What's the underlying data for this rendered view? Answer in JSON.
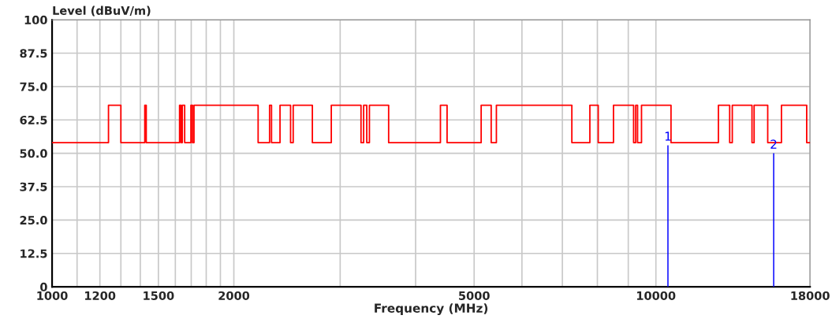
{
  "chart_data": {
    "type": "step",
    "xlabel": "Frequency (MHz)",
    "ylabel": "Level (dBuV/m)",
    "log": "x",
    "grid": true,
    "legend": false,
    "xlim": [
      1000,
      18000
    ],
    "ylim": [
      0,
      100
    ],
    "xticks": [
      1000,
      {
        "value": 1100,
        "label": null
      },
      1200,
      {
        "value": 1300,
        "label": null
      },
      {
        "value": 1400,
        "label": null
      },
      1500,
      {
        "value": 1600,
        "label": null
      },
      {
        "value": 1700,
        "label": null
      },
      {
        "value": 1800,
        "label": null
      },
      {
        "value": 1900,
        "label": null
      },
      2000,
      {
        "value": 3000,
        "label": null
      },
      {
        "value": 4000,
        "label": null
      },
      5000,
      {
        "value": 6000,
        "label": null
      },
      {
        "value": 7000,
        "label": null
      },
      {
        "value": 8000,
        "label": null
      },
      {
        "value": 9000,
        "label": null
      },
      10000,
      18000
    ],
    "yticks": [
      0,
      12.5,
      {
        "value": 25,
        "label": "25.0"
      },
      {
        "value": 37.5,
        "label": "37.5"
      },
      {
        "value": 50,
        "label": "50.0"
      },
      62.5,
      {
        "value": 75,
        "label": "75.0"
      },
      87.5,
      100
    ],
    "series": [
      {
        "color": "#ff0000",
        "x": [
          1000,
          1240,
          1300,
          1424,
          1432,
          1626,
          1635,
          1643,
          1658,
          1698,
          1708,
          1718,
          2194,
          2292,
          2309,
          2385,
          2483,
          2508,
          2698,
          2900,
          3248,
          3281,
          3320,
          3354,
          3609,
          4397,
          4510,
          5136,
          5336,
          5443,
          7258,
          7774,
          8026,
          8506,
          9185,
          9260,
          9325,
          9466,
          10593,
          12692,
          13249,
          13382,
          14426,
          14543,
          15318,
          16140,
          17773,
          18000
        ],
        "values": [
          54,
          68,
          54,
          68,
          54,
          68,
          54,
          68,
          54,
          68,
          54,
          68,
          54,
          68,
          54,
          68,
          54,
          68,
          54,
          68,
          54,
          68,
          54,
          68,
          54,
          68,
          54,
          68,
          54,
          68,
          54,
          68,
          54,
          68,
          54,
          68,
          54,
          68,
          54,
          68,
          54,
          68,
          54,
          68,
          54,
          68,
          54,
          54
        ]
      },
      {
        "type": "bar",
        "color": "#0000ff",
        "x": [
          10470,
          15670
        ],
        "values": [
          53,
          50
        ]
      }
    ],
    "annotations": [
      {
        "text": "1",
        "x": 10470,
        "y": 53
      },
      {
        "text": "2",
        "x": 15670,
        "y": 50
      }
    ]
  }
}
